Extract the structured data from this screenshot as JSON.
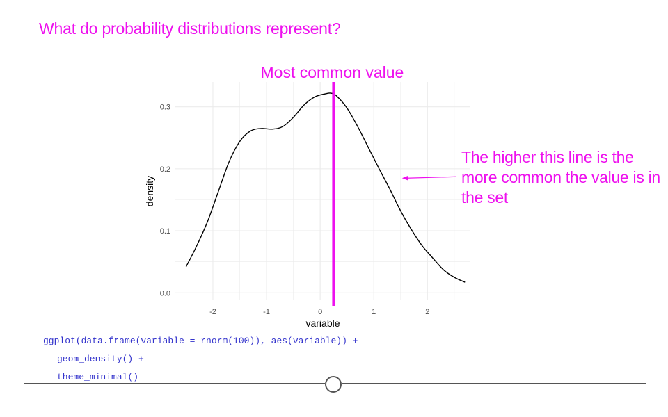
{
  "slide": {
    "title": "What do probability distributions represent?",
    "annotation": "The higher this line is the more common the value is in the set",
    "code_lines": [
      "ggplot(data.frame(variable = rnorm(100)), aes(variable)) +",
      "geom_density() +",
      "theme_minimal()"
    ]
  },
  "colors": {
    "accent": "#ee10ee",
    "curve": "#000000",
    "grid": "#ebebeb",
    "code": "#3333cc"
  },
  "chart_data": {
    "type": "line",
    "title": "Most common value",
    "xlabel": "variable",
    "ylabel": "density",
    "xlim": [
      -2.7,
      2.8
    ],
    "ylim": [
      -0.012,
      0.34
    ],
    "xticks": [
      -2,
      -1,
      0,
      1,
      2
    ],
    "yticks": [
      0.0,
      0.1,
      0.2,
      0.3
    ],
    "xtick_labels": [
      "-2",
      "-1",
      "0",
      "1",
      "2"
    ],
    "ytick_labels": [
      "0.0",
      "0.1",
      "0.2",
      "0.3"
    ],
    "grid": true,
    "x": [
      -2.5,
      -2.3,
      -2.1,
      -1.9,
      -1.7,
      -1.5,
      -1.3,
      -1.1,
      -0.9,
      -0.7,
      -0.5,
      -0.3,
      -0.1,
      0.1,
      0.2,
      0.3,
      0.5,
      0.7,
      0.9,
      1.1,
      1.3,
      1.5,
      1.7,
      1.9,
      2.1,
      2.3,
      2.5,
      2.7
    ],
    "y": [
      0.042,
      0.076,
      0.115,
      0.163,
      0.211,
      0.244,
      0.261,
      0.265,
      0.264,
      0.268,
      0.283,
      0.303,
      0.316,
      0.321,
      0.322,
      0.318,
      0.298,
      0.268,
      0.234,
      0.2,
      0.167,
      0.132,
      0.102,
      0.076,
      0.056,
      0.037,
      0.025,
      0.017
    ],
    "mode_line": {
      "x": 0.25,
      "label": "Most common value"
    },
    "arrow_target": {
      "x": 1.5,
      "y": 0.185
    }
  }
}
